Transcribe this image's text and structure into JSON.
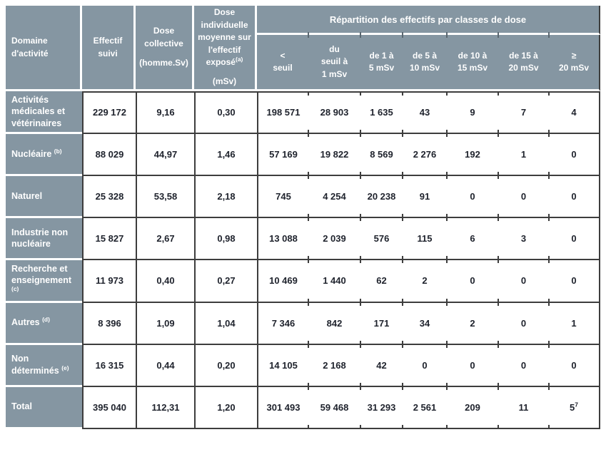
{
  "colors": {
    "header_bg": "#8596a2",
    "header_text": "#ffffff",
    "data_text": "#1e222c",
    "border_dark": "#3d3d3d",
    "background": "#ffffff"
  },
  "table": {
    "header": {
      "domain": "Domaine\nd'activité",
      "effectif": "Effectif\nsuivi",
      "dose_collective": "Dose\ncollective",
      "dose_collective_unit": "(homme.Sv)",
      "dose_individuelle": "Dose\nindividuelle\nmoyenne sur\nl'effectif\nexposé",
      "dose_individuelle_sup": "(a)",
      "dose_individuelle_unit": "(mSv)",
      "repartition": "Répartition des effectifs par classes de dose",
      "classes": [
        "<\nseuil",
        "du\nseuil à\n1 mSv",
        "de 1 à\n5 mSv",
        "de 5 à\n10 mSv",
        "de 10 à\n15 mSv",
        "de 15 à\n20 mSv",
        "≥\n20 mSv"
      ]
    },
    "rows": [
      {
        "label": "Activités médicales et vétérinaires",
        "sup": "",
        "values": [
          "229 172",
          "9,16",
          "0,30",
          "198 571",
          "28 903",
          "1 635",
          "43",
          "9",
          "7",
          "4"
        ]
      },
      {
        "label": "Nucléaire",
        "sup": "(b)",
        "values": [
          "88 029",
          "44,97",
          "1,46",
          "57 169",
          "19 822",
          "8 569",
          "2 276",
          "192",
          "1",
          "0"
        ]
      },
      {
        "label": "Naturel",
        "sup": "",
        "values": [
          "25 328",
          "53,58",
          "2,18",
          "745",
          "4 254",
          "20 238",
          "91",
          "0",
          "0",
          "0"
        ]
      },
      {
        "label": "Industrie non nucléaire",
        "sup": "",
        "values": [
          "15 827",
          "2,67",
          "0,98",
          "13 088",
          "2 039",
          "576",
          "115",
          "6",
          "3",
          "0"
        ]
      },
      {
        "label": "Recherche et enseignement",
        "sup": "(c)",
        "values": [
          "11 973",
          "0,40",
          "0,27",
          "10 469",
          "1 440",
          "62",
          "2",
          "0",
          "0",
          "0"
        ]
      },
      {
        "label": "Autres",
        "sup": "(d)",
        "values": [
          "8 396",
          "1,09",
          "1,04",
          "7 346",
          "842",
          "171",
          "34",
          "2",
          "0",
          "1"
        ]
      },
      {
        "label": "Non déterminés",
        "sup": "(e)",
        "values": [
          "16 315",
          "0,44",
          "0,20",
          "14 105",
          "2 168",
          "42",
          "0",
          "0",
          "0",
          "0"
        ]
      },
      {
        "label": "Total",
        "sup": "",
        "values": [
          "395 040",
          "112,31",
          "1,20",
          "301 493",
          "59 468",
          "31 293",
          "2 561",
          "209",
          "11",
          "5"
        ],
        "last_sup": "7"
      }
    ]
  }
}
